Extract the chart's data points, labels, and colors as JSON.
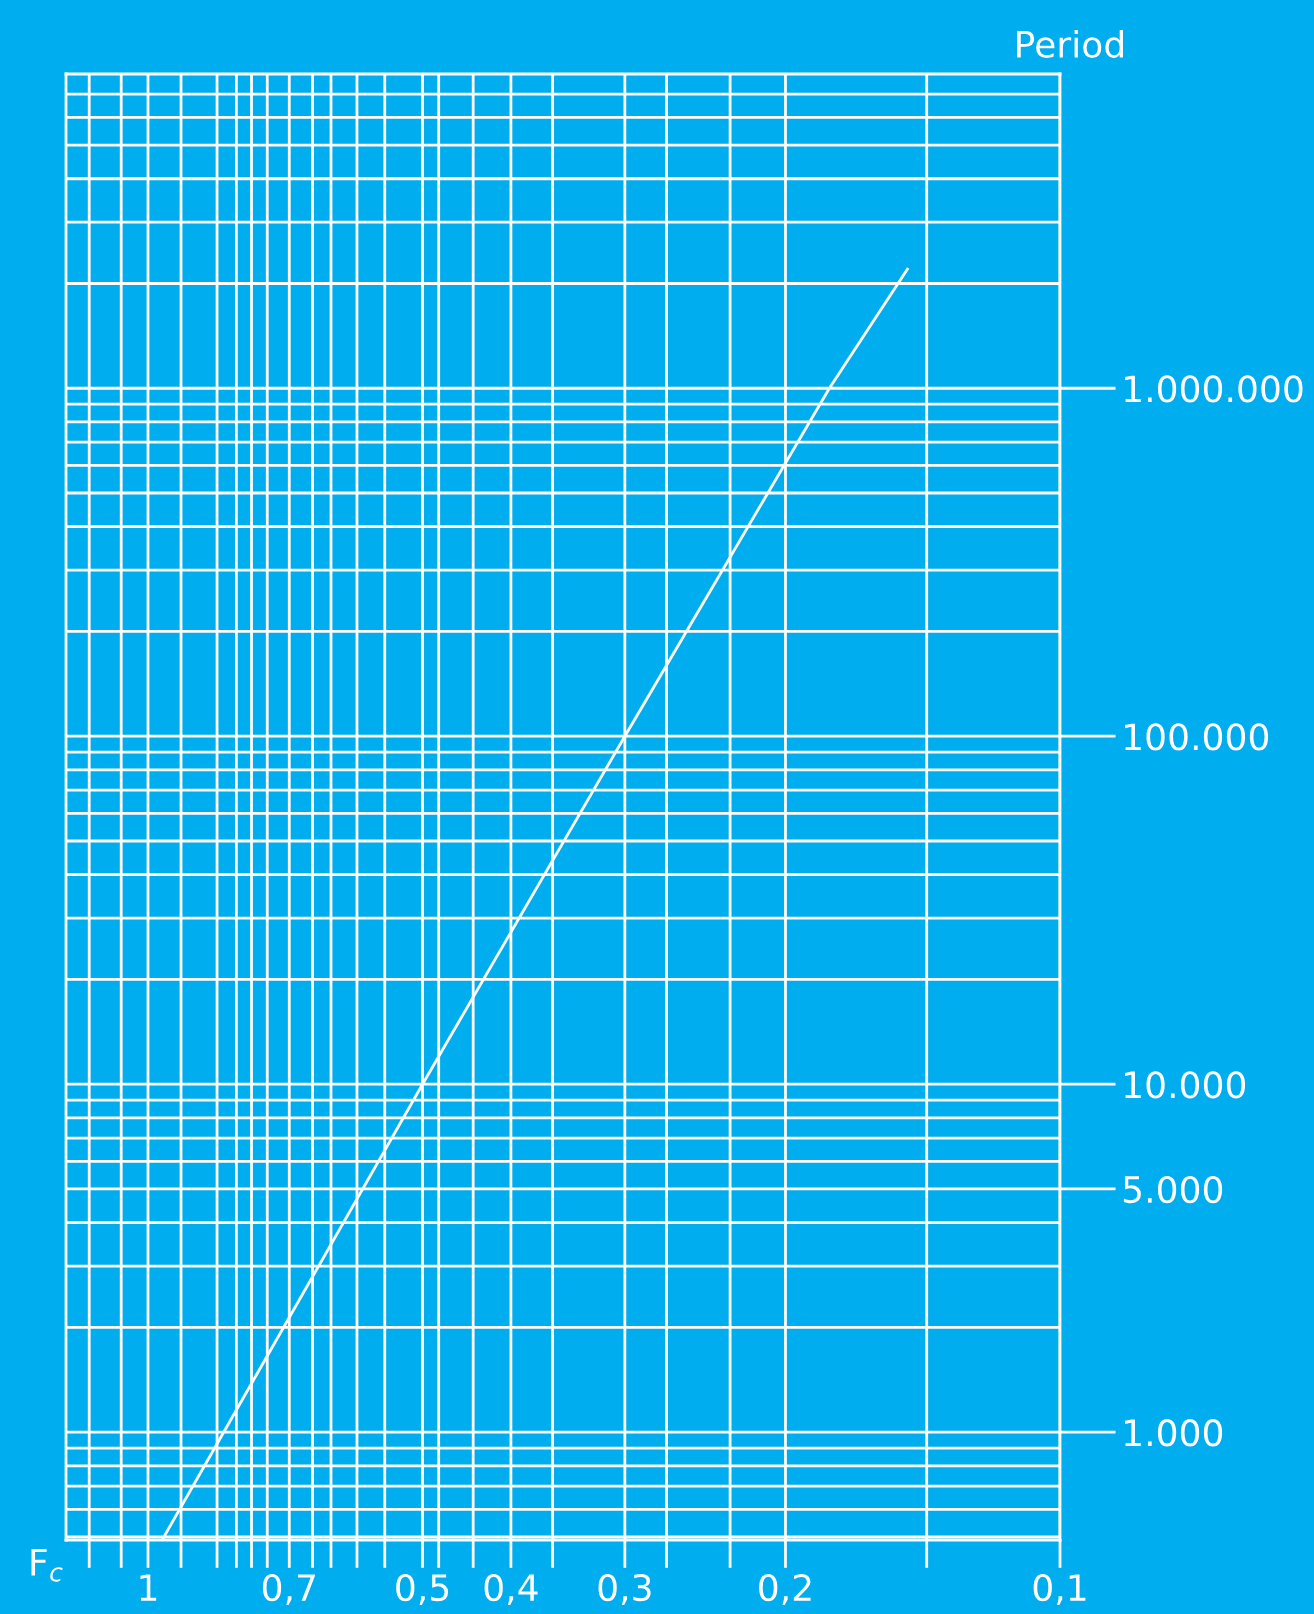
{
  "chart_data": {
    "type": "line",
    "xlabel": "F$_{c}$",
    "ylabel": "Period",
    "log": "xy",
    "grid": true,
    "marker": "none",
    "line_style": "solid",
    "xlim": [
      1.23,
      0.1
    ],
    "ylim": [
      490,
      8000000
    ],
    "xticks": [
      {
        "value": 1.16,
        "label": null
      },
      {
        "value": 1.07,
        "label": null
      },
      1,
      {
        "value": 0.92,
        "label": null
      },
      {
        "value": 0.84,
        "label": null
      },
      {
        "value": 0.8,
        "label": null
      },
      {
        "value": 0.77,
        "label": null
      },
      {
        "value": 0.74,
        "label": null
      },
      {
        "value": 0.7,
        "label": "0,7"
      },
      {
        "value": 0.66,
        "label": null
      },
      {
        "value": 0.63,
        "label": null
      },
      {
        "value": 0.59,
        "label": null
      },
      {
        "value": 0.55,
        "label": null
      },
      {
        "value": 0.5,
        "label": "0,5"
      },
      {
        "value": 0.48,
        "label": null
      },
      {
        "value": 0.44,
        "label": null
      },
      {
        "value": 0.4,
        "label": "0,4"
      },
      {
        "value": 0.36,
        "label": null
      },
      {
        "value": 0.3,
        "label": "0,3"
      },
      {
        "value": 0.27,
        "label": null
      },
      {
        "value": 0.23,
        "label": null
      },
      {
        "value": 0.2,
        "label": "0,2"
      },
      {
        "value": 0.14,
        "label": null
      },
      {
        "value": 0.1,
        "label": "0,1"
      }
    ],
    "yticks": [
      {
        "value": 500,
        "label": null
      },
      {
        "value": 600,
        "label": null
      },
      {
        "value": 700,
        "label": null
      },
      {
        "value": 800,
        "label": null
      },
      {
        "value": 900,
        "label": null
      },
      {
        "value": 1000,
        "label": "1.000"
      },
      {
        "value": 2000,
        "label": null
      },
      {
        "value": 3000,
        "label": null
      },
      {
        "value": 4000,
        "label": null
      },
      {
        "value": 5000,
        "label": "5.000"
      },
      {
        "value": 6000,
        "label": null
      },
      {
        "value": 7000,
        "label": null
      },
      {
        "value": 8000,
        "label": null
      },
      {
        "value": 9000,
        "label": null
      },
      {
        "value": 10000,
        "label": "10.000"
      },
      {
        "value": 20000,
        "label": null
      },
      {
        "value": 30000,
        "label": null
      },
      {
        "value": 40000,
        "label": null
      },
      {
        "value": 50000,
        "label": null
      },
      {
        "value": 60000,
        "label": null
      },
      {
        "value": 70000,
        "label": null
      },
      {
        "value": 80000,
        "label": null
      },
      {
        "value": 90000,
        "label": null
      },
      {
        "value": 100000,
        "label": "100.000"
      },
      {
        "value": 200000,
        "label": null
      },
      {
        "value": 300000,
        "label": null
      },
      {
        "value": 400000,
        "label": null
      },
      {
        "value": 500000,
        "label": null
      },
      {
        "value": 600000,
        "label": null
      },
      {
        "value": 700000,
        "label": null
      },
      {
        "value": 800000,
        "label": null
      },
      {
        "value": 900000,
        "label": null
      },
      {
        "value": 1000000,
        "label": "1.000.000"
      },
      {
        "value": 2000000,
        "label": null
      },
      {
        "value": 3000000,
        "label": null
      },
      {
        "value": 4000000,
        "label": null
      },
      {
        "value": 5000000,
        "label": null
      },
      {
        "value": 6000000,
        "label": null
      },
      {
        "value": 7000000,
        "label": null
      }
    ],
    "series": [
      {
        "color": "#ffffff",
        "x": [
          0.965,
          0.5,
          0.3,
          0.179,
          0.147
        ],
        "values": [
          490,
          10000,
          100000,
          1000000,
          2200000
        ]
      }
    ]
  }
}
